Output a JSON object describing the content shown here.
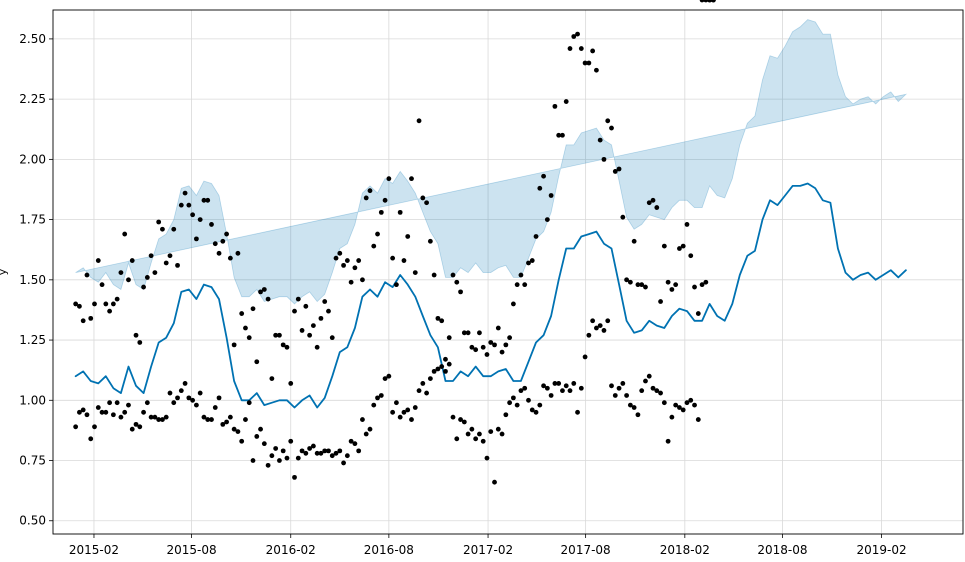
{
  "chart_data": {
    "type": "line",
    "title": "",
    "xlabel": "",
    "ylabel": "y",
    "x_axis": {
      "type": "date",
      "range": [
        "2014-11-17",
        "2019-07-02"
      ],
      "ticks": [
        "2015-02-01",
        "2015-08-01",
        "2016-02-01",
        "2016-08-01",
        "2017-02-01",
        "2017-08-01",
        "2018-02-01",
        "2018-08-01",
        "2019-02-01"
      ],
      "tick_labels": [
        "2015-02",
        "2015-08",
        "2016-02",
        "2016-08",
        "2017-02",
        "2017-08",
        "2018-02",
        "2018-08",
        "2019-02"
      ]
    },
    "y_axis": {
      "range": [
        0.445,
        2.62
      ],
      "ticks": [
        0.5,
        0.75,
        1.0,
        1.25,
        1.5,
        1.75,
        2.0,
        2.25,
        2.5
      ],
      "tick_labels": [
        "0.50",
        "0.75",
        "1.00",
        "1.25",
        "1.50",
        "1.75",
        "2.00",
        "2.25",
        "2.50"
      ]
    },
    "grid": true,
    "colors": {
      "forecast": "#0072B2",
      "interval": "#0072B2",
      "observed": "#000000"
    },
    "forecast": {
      "x": [
        "2014-12-29",
        "2015-01-12",
        "2015-01-26",
        "2015-02-09",
        "2015-02-23",
        "2015-03-09",
        "2015-03-23",
        "2015-04-06",
        "2015-04-20",
        "2015-05-04",
        "2015-05-18",
        "2015-06-01",
        "2015-06-15",
        "2015-06-29",
        "2015-07-13",
        "2015-07-27",
        "2015-08-10",
        "2015-08-24",
        "2015-09-07",
        "2015-09-21",
        "2015-10-05",
        "2015-10-19",
        "2015-11-02",
        "2015-11-16",
        "2015-11-30",
        "2015-12-14",
        "2015-12-28",
        "2016-01-11",
        "2016-01-25",
        "2016-02-08",
        "2016-02-22",
        "2016-03-07",
        "2016-03-21",
        "2016-04-04",
        "2016-04-18",
        "2016-05-02",
        "2016-05-16",
        "2016-05-30",
        "2016-06-13",
        "2016-06-27",
        "2016-07-11",
        "2016-07-25",
        "2016-08-08",
        "2016-08-22",
        "2016-09-05",
        "2016-09-19",
        "2016-10-03",
        "2016-10-17",
        "2016-10-31",
        "2016-11-14",
        "2016-11-28",
        "2016-12-12",
        "2016-12-26",
        "2017-01-09",
        "2017-01-23",
        "2017-02-06",
        "2017-02-20",
        "2017-03-06",
        "2017-03-20",
        "2017-04-03",
        "2017-04-17",
        "2017-05-01",
        "2017-05-15",
        "2017-05-29",
        "2017-06-12",
        "2017-06-26",
        "2017-07-10",
        "2017-07-24",
        "2017-08-07",
        "2017-08-21",
        "2017-09-04",
        "2017-09-18",
        "2017-10-02",
        "2017-10-16",
        "2017-10-30",
        "2017-11-13",
        "2017-11-27",
        "2017-12-11",
        "2017-12-25",
        "2018-01-08",
        "2018-01-22",
        "2018-02-05",
        "2018-02-19",
        "2018-03-05",
        "2018-03-19",
        "2018-04-02",
        "2018-04-16",
        "2018-04-30",
        "2018-05-14",
        "2018-05-28",
        "2018-06-11",
        "2018-06-25",
        "2018-07-09",
        "2018-07-23",
        "2018-08-06",
        "2018-08-20",
        "2018-09-03",
        "2018-09-17",
        "2018-10-01",
        "2018-10-15",
        "2018-10-29",
        "2018-11-12",
        "2018-11-26",
        "2018-12-10",
        "2018-12-24",
        "2019-01-07",
        "2019-01-21",
        "2019-02-04",
        "2019-02-18",
        "2019-03-04",
        "2019-03-18",
        "2019-04-01",
        "2019-04-15"
      ],
      "yhat": [
        1.1,
        1.12,
        1.08,
        1.07,
        1.1,
        1.05,
        1.03,
        1.14,
        1.06,
        1.03,
        1.14,
        1.24,
        1.26,
        1.32,
        1.45,
        1.46,
        1.42,
        1.48,
        1.47,
        1.42,
        1.26,
        1.08,
        1.0,
        1.0,
        1.03,
        0.98,
        0.99,
        1.0,
        1.0,
        0.97,
        1.0,
        1.02,
        0.97,
        1.01,
        1.1,
        1.2,
        1.22,
        1.3,
        1.43,
        1.46,
        1.43,
        1.49,
        1.47,
        1.52,
        1.48,
        1.43,
        1.35,
        1.27,
        1.22,
        1.08,
        1.08,
        1.12,
        1.1,
        1.14,
        1.1,
        1.1,
        1.12,
        1.13,
        1.08,
        1.08,
        1.16,
        1.24,
        1.27,
        1.35,
        1.5,
        1.63,
        1.63,
        1.68,
        1.69,
        1.7,
        1.65,
        1.63,
        1.48,
        1.33,
        1.28,
        1.29,
        1.33,
        1.31,
        1.3,
        1.35,
        1.38,
        1.37,
        1.33,
        1.33,
        1.4,
        1.35,
        1.33,
        1.4,
        1.52,
        1.6,
        1.62,
        1.75,
        1.83,
        1.81,
        1.85,
        1.89,
        1.89,
        1.9,
        1.88,
        1.83,
        1.82,
        1.63,
        1.53,
        1.5,
        1.52,
        1.53,
        1.5,
        1.52,
        1.54,
        1.51,
        1.54
      ],
      "yhat_lower": [
        0.68,
        0.7,
        0.66,
        0.64,
        0.68,
        0.63,
        0.61,
        0.71,
        0.63,
        0.61,
        0.72,
        0.82,
        0.84,
        0.9,
        1.03,
        1.04,
        1.0,
        1.06,
        1.05,
        1.0,
        0.84,
        0.66,
        0.58,
        0.57,
        0.6,
        0.55,
        0.56,
        0.56,
        0.57,
        0.54,
        0.56,
        0.59,
        0.54,
        0.58,
        0.67,
        0.77,
        0.79,
        0.87,
        1.0,
        1.03,
        1.0,
        1.06,
        1.04,
        1.09,
        1.05,
        1.0,
        0.92,
        0.84,
        0.79,
        0.65,
        0.65,
        0.69,
        0.67,
        0.71,
        0.67,
        0.67,
        0.69,
        0.7,
        0.65,
        0.65,
        0.73,
        0.8,
        0.84,
        0.92,
        1.07,
        1.2,
        1.2,
        1.25,
        1.26,
        1.27,
        1.22,
        1.2,
        1.05,
        0.9,
        0.85,
        0.86,
        0.89,
        0.87,
        0.86,
        0.9,
        0.92,
        0.9,
        0.86,
        0.87,
        0.91,
        0.86,
        0.83,
        0.88,
        0.98,
        1.05,
        1.06,
        1.17,
        1.23,
        1.2,
        1.23,
        1.25,
        1.23,
        1.22,
        1.2,
        1.14,
        1.12,
        0.91,
        0.8,
        0.77,
        0.79,
        0.8,
        0.77,
        0.78,
        0.8,
        0.78,
        0.81
      ],
      "yhat_upper": [
        1.53,
        1.55,
        1.51,
        1.49,
        1.53,
        1.48,
        1.46,
        1.57,
        1.48,
        1.46,
        1.57,
        1.67,
        1.69,
        1.75,
        1.88,
        1.89,
        1.85,
        1.91,
        1.9,
        1.85,
        1.69,
        1.51,
        1.43,
        1.43,
        1.46,
        1.41,
        1.42,
        1.43,
        1.43,
        1.4,
        1.43,
        1.45,
        1.41,
        1.44,
        1.53,
        1.63,
        1.65,
        1.73,
        1.86,
        1.89,
        1.86,
        1.92,
        1.9,
        1.95,
        1.91,
        1.86,
        1.78,
        1.7,
        1.65,
        1.51,
        1.51,
        1.55,
        1.53,
        1.57,
        1.53,
        1.53,
        1.55,
        1.56,
        1.51,
        1.51,
        1.59,
        1.67,
        1.7,
        1.78,
        1.93,
        2.06,
        2.06,
        2.11,
        2.12,
        2.13,
        2.08,
        2.06,
        1.91,
        1.76,
        1.71,
        1.73,
        1.77,
        1.76,
        1.75,
        1.8,
        1.83,
        1.83,
        1.8,
        1.8,
        1.89,
        1.85,
        1.84,
        1.92,
        2.06,
        2.15,
        2.18,
        2.33,
        2.43,
        2.42,
        2.47,
        2.53,
        2.55,
        2.58,
        2.57,
        2.52,
        2.52,
        2.35,
        2.26,
        2.23,
        2.25,
        2.26,
        2.23,
        2.26,
        2.28,
        2.24,
        2.27
      ]
    },
    "observed": {
      "x": [
        "2014-12-29",
        "2015-01-05",
        "2015-01-12",
        "2015-01-19",
        "2015-01-26",
        "2015-02-02",
        "2015-02-09",
        "2015-02-16",
        "2015-02-23",
        "2015-03-02",
        "2015-03-09",
        "2015-03-16",
        "2015-03-23",
        "2015-03-30",
        "2015-04-06",
        "2015-04-13",
        "2015-04-20",
        "2015-04-27",
        "2015-05-04",
        "2015-05-11",
        "2015-05-18",
        "2015-05-25",
        "2015-06-01",
        "2015-06-08",
        "2015-06-15",
        "2015-06-22",
        "2015-06-29",
        "2015-07-06",
        "2015-07-13",
        "2015-07-20",
        "2015-07-27",
        "2015-08-03",
        "2015-08-10",
        "2015-08-17",
        "2015-08-24",
        "2015-08-31",
        "2015-09-07",
        "2015-09-14",
        "2015-09-21",
        "2015-09-28",
        "2015-10-05",
        "2015-10-12",
        "2015-10-19",
        "2015-10-26",
        "2015-11-02",
        "2015-11-09",
        "2015-11-16",
        "2015-11-23",
        "2015-11-30",
        "2015-12-07",
        "2015-12-14",
        "2015-12-21",
        "2015-12-28",
        "2016-01-04",
        "2016-01-11",
        "2016-01-18",
        "2016-01-25",
        "2016-02-01",
        "2016-02-08",
        "2016-02-15",
        "2016-02-22",
        "2016-02-29",
        "2016-03-07",
        "2016-03-14",
        "2016-03-21",
        "2016-03-28",
        "2016-04-04",
        "2016-04-11",
        "2016-04-18",
        "2016-04-25",
        "2016-05-02",
        "2016-05-09",
        "2016-05-16",
        "2016-05-23",
        "2016-05-30",
        "2016-06-06",
        "2016-06-13",
        "2016-06-20",
        "2016-06-27",
        "2016-07-04",
        "2016-07-11",
        "2016-07-18",
        "2016-07-25",
        "2016-08-01",
        "2016-08-08",
        "2016-08-15",
        "2016-08-22",
        "2016-08-29",
        "2016-09-05",
        "2016-09-12",
        "2016-09-19",
        "2016-09-26",
        "2016-10-03",
        "2016-10-10",
        "2016-10-17",
        "2016-10-24",
        "2016-10-31",
        "2016-11-07",
        "2016-11-14",
        "2016-11-21",
        "2016-11-28",
        "2016-12-05",
        "2016-12-12",
        "2016-12-19",
        "2016-12-26",
        "2017-01-02",
        "2017-01-09",
        "2017-01-16",
        "2017-01-23",
        "2017-01-30",
        "2017-02-06",
        "2017-02-13",
        "2017-02-20",
        "2017-02-27",
        "2017-03-06",
        "2017-03-13",
        "2017-03-20",
        "2017-03-27",
        "2017-04-03",
        "2017-04-10",
        "2017-04-17",
        "2017-04-24",
        "2017-05-01",
        "2017-05-08",
        "2017-05-15",
        "2017-05-22",
        "2017-05-29",
        "2017-06-05",
        "2017-06-12",
        "2017-06-19",
        "2017-06-26",
        "2017-07-03",
        "2017-07-10",
        "2017-07-17",
        "2017-07-24",
        "2017-07-31",
        "2017-08-07",
        "2017-08-14",
        "2017-08-21",
        "2017-08-28",
        "2017-09-04",
        "2017-09-11",
        "2017-09-18",
        "2017-09-25",
        "2017-10-02",
        "2017-10-09",
        "2017-10-16",
        "2017-10-23",
        "2017-10-30",
        "2017-11-06",
        "2017-11-13",
        "2017-11-20",
        "2017-11-27",
        "2017-12-04",
        "2017-12-11",
        "2017-12-18",
        "2017-12-25",
        "2018-01-01",
        "2018-01-08",
        "2018-01-15",
        "2018-01-22",
        "2018-01-29",
        "2018-02-05",
        "2018-02-12",
        "2018-02-19",
        "2018-02-26",
        "2018-03-05",
        "2018-03-12",
        "2018-03-19",
        "2018-03-26"
      ],
      "y_group_a": [
        1.4,
        1.39,
        1.33,
        1.52,
        1.34,
        1.4,
        1.58,
        1.48,
        1.4,
        1.37,
        1.4,
        1.42,
        1.53,
        1.69,
        1.5,
        1.58,
        1.27,
        1.24,
        1.47,
        1.51,
        1.6,
        1.53,
        1.74,
        1.71,
        1.57,
        1.6,
        1.71,
        1.56,
        1.81,
        1.86,
        1.81,
        1.77,
        1.67,
        1.75,
        1.83,
        1.83,
        1.73,
        1.65,
        1.61,
        1.66,
        1.69,
        1.59,
        1.23,
        1.61,
        1.36,
        1.3,
        1.26,
        1.38,
        1.16,
        1.45,
        1.46,
        1.42,
        1.09,
        1.27,
        1.27,
        1.23,
        1.22,
        1.07,
        1.37,
        1.42,
        1.29,
        1.39,
        1.27,
        1.31,
        1.22,
        1.34,
        1.41,
        1.37,
        1.26,
        1.59,
        1.61,
        1.56,
        1.58,
        1.49,
        1.55,
        1.58,
        1.5,
        1.84,
        1.87,
        1.64,
        1.69,
        1.78,
        1.83,
        1.92,
        1.59,
        1.48,
        1.78,
        1.58,
        1.68,
        1.92,
        1.53,
        2.16,
        1.84,
        1.82,
        1.66,
        1.52,
        1.34,
        1.33,
        1.12,
        1.26,
        1.52,
        1.49,
        1.45,
        1.28,
        1.28,
        1.22,
        1.21,
        1.28,
        1.22,
        1.19,
        1.24,
        1.23,
        1.3,
        1.2,
        1.23,
        1.26,
        1.4,
        1.48,
        1.52,
        1.48,
        1.57,
        1.58,
        1.68,
        1.88,
        1.93,
        1.75,
        1.85,
        2.22,
        2.1,
        2.1,
        2.24,
        2.46,
        2.51,
        2.52,
        2.46,
        2.4,
        2.4,
        2.45,
        2.37,
        2.08,
        2.0,
        2.16,
        2.13,
        1.95,
        1.96,
        1.76,
        1.5,
        1.49,
        1.66,
        1.48,
        1.48,
        1.47,
        1.82,
        1.83,
        1.8,
        1.41,
        1.64,
        1.49,
        1.46,
        1.48,
        1.63,
        1.64,
        1.73,
        1.6,
        1.47,
        1.36,
        1.48,
        1.49
      ],
      "y_group_b": [
        0.89,
        0.95,
        0.96,
        0.94,
        0.84,
        0.89,
        0.97,
        0.95,
        0.95,
        0.99,
        0.94,
        0.99,
        0.93,
        0.95,
        0.98,
        0.88,
        0.9,
        0.89,
        0.95,
        0.99,
        0.93,
        0.93,
        0.92,
        0.92,
        0.93,
        1.03,
        0.99,
        1.01,
        1.04,
        1.07,
        1.01,
        1.0,
        0.98,
        1.03,
        0.93,
        0.92,
        0.92,
        0.97,
        1.01,
        0.9,
        0.91,
        0.93,
        0.88,
        0.87,
        0.83,
        0.92,
        0.99,
        0.75,
        0.85,
        0.88,
        0.82,
        0.73,
        0.77,
        0.8,
        0.75,
        0.79,
        0.76,
        0.83,
        0.68,
        0.76,
        0.79,
        0.78,
        0.8,
        0.81,
        0.78,
        0.78,
        0.79,
        0.79,
        0.77,
        0.78,
        0.79,
        0.74,
        0.77,
        0.83,
        0.82,
        0.79,
        0.92,
        0.86,
        0.88,
        0.98,
        1.01,
        1.02,
        1.09,
        1.1,
        0.95,
        0.99,
        0.93,
        0.95,
        0.96,
        0.92,
        0.97,
        1.04,
        1.07,
        1.03,
        1.09,
        1.12,
        1.13,
        1.14,
        1.17,
        1.15,
        0.93,
        0.84,
        0.92,
        0.91,
        0.86,
        0.88,
        0.84,
        0.86,
        0.83,
        0.76,
        0.87,
        0.66,
        0.88,
        0.86,
        0.94,
        0.99,
        1.01,
        0.98,
        1.04,
        1.05,
        1.0,
        0.96,
        0.95,
        0.98,
        1.06,
        1.05,
        1.02,
        1.07,
        1.07,
        1.04,
        1.06,
        1.04,
        1.07,
        0.95,
        1.05,
        1.18,
        1.27,
        1.33,
        1.3,
        1.31,
        1.29,
        1.33,
        1.06,
        1.02,
        1.05,
        1.07,
        1.02,
        0.98,
        0.97,
        0.94,
        1.04,
        1.08,
        1.1,
        1.05,
        1.04,
        1.03,
        0.99,
        0.83,
        0.93,
        0.98,
        0.97,
        0.96,
        0.99,
        1.0,
        0.98,
        0.92
      ]
    }
  }
}
